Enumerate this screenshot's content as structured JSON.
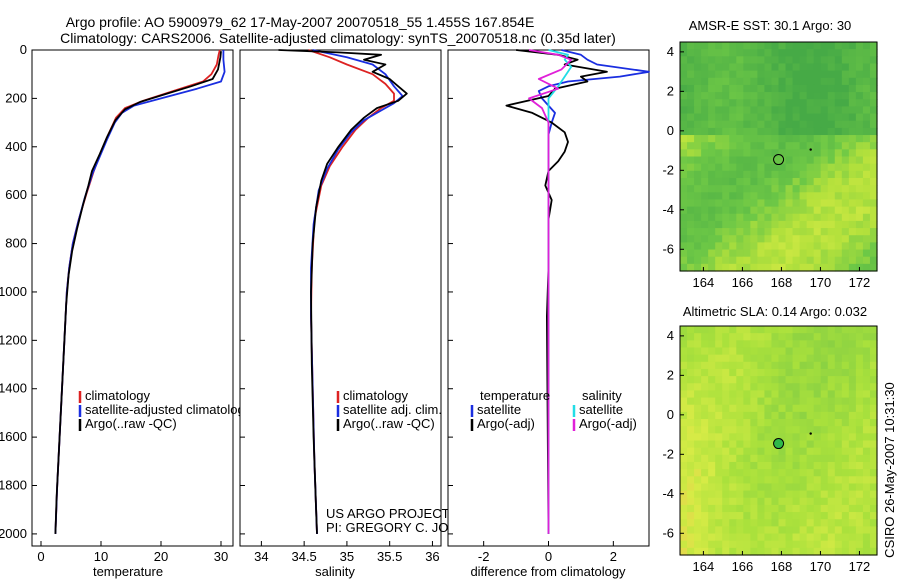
{
  "title_line1": "Argo profile: AO 5900979_62 17-May-2007 20070518_55 1.455S 167.854E",
  "title_line2": "Climatology: CARS2006. Satellite-adjusted climatology: synTS_20070518.nc (0.35d later)",
  "credit": {
    "project": "US ARGO PROJECT",
    "pi": "PI: GREGORY C. JOHNSON",
    "side_stamp": "CSIRO 26-May-2007 10:31:30"
  },
  "colors": {
    "climatology": "#dd2222",
    "satellite": "#1a2ee0",
    "argo": "#000000",
    "salinity_satellite": "#22dde6",
    "salinity_argo": "#e020d8",
    "map_marker_fill_sla": "#2fb84a"
  },
  "chart_data": [
    {
      "id": "temperature",
      "type": "line",
      "xlabel": "temperature",
      "ylabel": "",
      "xlim": [
        -1.5,
        32
      ],
      "ylim": [
        2050,
        0
      ],
      "xticks": [
        0,
        10,
        20,
        30
      ],
      "yticks": [
        0,
        200,
        400,
        600,
        800,
        1000,
        1200,
        1400,
        1600,
        1800,
        2000
      ],
      "legend": [
        "climatology",
        "satellite-adjusted climatology",
        "Argo(..raw -QC)"
      ],
      "series": [
        {
          "name": "climatology",
          "color_key": "climatology",
          "points": [
            [
              29.8,
              0
            ],
            [
              29.6,
              20
            ],
            [
              29.3,
              60
            ],
            [
              28.4,
              100
            ],
            [
              27.0,
              130
            ],
            [
              22.0,
              170
            ],
            [
              17.0,
              210
            ],
            [
              14.0,
              240
            ],
            [
              12.5,
              280
            ],
            [
              11.2,
              350
            ],
            [
              10.0,
              420
            ],
            [
              8.8,
              500
            ],
            [
              7.5,
              600
            ],
            [
              6.3,
              700
            ],
            [
              5.3,
              800
            ],
            [
              4.7,
              900
            ],
            [
              4.3,
              1000
            ],
            [
              3.9,
              1200
            ],
            [
              3.5,
              1400
            ],
            [
              3.1,
              1600
            ],
            [
              2.7,
              1800
            ],
            [
              2.4,
              2000
            ]
          ]
        },
        {
          "name": "satellite-adjusted climatology",
          "color_key": "satellite",
          "points": [
            [
              30.4,
              0
            ],
            [
              30.4,
              40
            ],
            [
              30.6,
              90
            ],
            [
              30.0,
              130
            ],
            [
              26.0,
              160
            ],
            [
              20.0,
              200
            ],
            [
              15.5,
              230
            ],
            [
              13.5,
              260
            ],
            [
              12.3,
              300
            ],
            [
              11.0,
              370
            ],
            [
              9.8,
              440
            ],
            [
              8.6,
              510
            ],
            [
              7.3,
              610
            ],
            [
              6.2,
              710
            ],
            [
              5.3,
              800
            ],
            [
              4.7,
              900
            ],
            [
              4.3,
              1000
            ],
            [
              3.9,
              1200
            ],
            [
              3.5,
              1400
            ],
            [
              3.1,
              1600
            ],
            [
              2.7,
              1800
            ],
            [
              2.4,
              2000
            ]
          ]
        },
        {
          "name": "Argo(..raw -QC)",
          "color_key": "argo",
          "points": [
            [
              30.0,
              5
            ],
            [
              29.9,
              30
            ],
            [
              29.5,
              80
            ],
            [
              28.6,
              120
            ],
            [
              25.0,
              150
            ],
            [
              21.0,
              180
            ],
            [
              16.5,
              215
            ],
            [
              14.0,
              245
            ],
            [
              12.4,
              290
            ],
            [
              11.0,
              360
            ],
            [
              9.8,
              430
            ],
            [
              8.5,
              500
            ],
            [
              7.9,
              560
            ],
            [
              7.0,
              640
            ],
            [
              6.0,
              740
            ],
            [
              5.2,
              830
            ],
            [
              4.6,
              930
            ],
            [
              4.2,
              1050
            ],
            [
              3.8,
              1250
            ],
            [
              3.4,
              1450
            ],
            [
              3.0,
              1650
            ],
            [
              2.6,
              1850
            ],
            [
              2.4,
              2000
            ]
          ]
        }
      ]
    },
    {
      "id": "salinity",
      "type": "line",
      "xlabel": "salinity",
      "ylabel": "",
      "xlim": [
        33.75,
        36.1
      ],
      "ylim": [
        2050,
        0
      ],
      "xticks": [
        34,
        34.5,
        35,
        35.5,
        36
      ],
      "yticks": [],
      "legend": [
        "climatology",
        "satellite adj. clim.",
        "Argo(..raw -QC)"
      ],
      "series": [
        {
          "name": "climatology",
          "color_key": "climatology",
          "points": [
            [
              34.55,
              0
            ],
            [
              34.8,
              30
            ],
            [
              35.0,
              60
            ],
            [
              35.3,
              100
            ],
            [
              35.45,
              140
            ],
            [
              35.55,
              180
            ],
            [
              35.55,
              210
            ],
            [
              35.4,
              240
            ],
            [
              35.25,
              280
            ],
            [
              35.1,
              330
            ],
            [
              34.95,
              400
            ],
            [
              34.8,
              480
            ],
            [
              34.7,
              560
            ],
            [
              34.62,
              700
            ],
            [
              34.59,
              900
            ],
            [
              34.58,
              1100
            ],
            [
              34.6,
              1400
            ],
            [
              34.62,
              1700
            ],
            [
              34.65,
              2000
            ]
          ]
        },
        {
          "name": "satellite adj. clim.",
          "color_key": "satellite",
          "points": [
            [
              34.6,
              0
            ],
            [
              35.0,
              30
            ],
            [
              35.3,
              60
            ],
            [
              35.45,
              100
            ],
            [
              35.55,
              150
            ],
            [
              35.65,
              190
            ],
            [
              35.55,
              220
            ],
            [
              35.4,
              250
            ],
            [
              35.2,
              290
            ],
            [
              35.05,
              340
            ],
            [
              34.9,
              410
            ],
            [
              34.77,
              490
            ],
            [
              34.67,
              580
            ],
            [
              34.61,
              720
            ],
            [
              34.58,
              900
            ],
            [
              34.58,
              1100
            ],
            [
              34.6,
              1400
            ],
            [
              34.62,
              1700
            ],
            [
              34.65,
              2000
            ]
          ]
        },
        {
          "name": "Argo(..raw -QC)",
          "color_key": "argo",
          "points": [
            [
              34.2,
              0
            ],
            [
              34.9,
              10
            ],
            [
              35.4,
              20
            ],
            [
              35.2,
              40
            ],
            [
              35.45,
              60
            ],
            [
              35.3,
              90
            ],
            [
              35.5,
              120
            ],
            [
              35.6,
              150
            ],
            [
              35.7,
              180
            ],
            [
              35.6,
              210
            ],
            [
              35.35,
              240
            ],
            [
              35.2,
              280
            ],
            [
              35.05,
              330
            ],
            [
              34.9,
              400
            ],
            [
              34.77,
              470
            ],
            [
              34.7,
              540
            ],
            [
              34.64,
              650
            ],
            [
              34.6,
              800
            ],
            [
              34.58,
              1000
            ],
            [
              34.59,
              1300
            ],
            [
              34.61,
              1600
            ],
            [
              34.64,
              1900
            ],
            [
              34.65,
              2000
            ]
          ]
        }
      ]
    },
    {
      "id": "difference",
      "type": "line",
      "xlabel": "difference from climatology",
      "ylabel": "",
      "xlim": [
        -3.1,
        3.1
      ],
      "ylim": [
        2050,
        0
      ],
      "xticks": [
        -2,
        0,
        2
      ],
      "yticks": [],
      "legend_groups": [
        {
          "header": "temperature",
          "items": [
            "satellite",
            "Argo(-adj)"
          ]
        },
        {
          "header": "salinity",
          "items": [
            "satellite",
            "Argo(-adj)"
          ]
        }
      ],
      "series": [
        {
          "name": "temperature satellite",
          "color_key": "satellite",
          "points": [
            [
              0.4,
              0
            ],
            [
              1.0,
              20
            ],
            [
              1.2,
              40
            ],
            [
              1.5,
              60
            ],
            [
              3.1,
              90
            ],
            [
              2.2,
              110
            ],
            [
              0.6,
              130
            ],
            [
              0.0,
              150
            ],
            [
              -0.3,
              170
            ],
            [
              -0.2,
              200
            ],
            [
              0.0,
              230
            ],
            [
              0.2,
              260
            ],
            [
              0.1,
              300
            ],
            [
              0.0,
              350
            ],
            [
              0.0,
              500
            ],
            [
              0.0,
              2000
            ]
          ]
        },
        {
          "name": "temperature Argo(-adj)",
          "color_key": "argo",
          "points": [
            [
              -1.0,
              0
            ],
            [
              0.3,
              20
            ],
            [
              0.9,
              40
            ],
            [
              0.5,
              60
            ],
            [
              1.8,
              90
            ],
            [
              1.0,
              110
            ],
            [
              1.2,
              130
            ],
            [
              0.2,
              160
            ],
            [
              0.0,
              190
            ],
            [
              -1.3,
              230
            ],
            [
              -0.5,
              260
            ],
            [
              0.1,
              300
            ],
            [
              0.5,
              340
            ],
            [
              0.6,
              380
            ],
            [
              0.5,
              420
            ],
            [
              0.3,
              460
            ],
            [
              0.0,
              500
            ],
            [
              -0.1,
              560
            ],
            [
              0.1,
              620
            ],
            [
              0.0,
              700
            ],
            [
              0.0,
              900
            ],
            [
              -0.05,
              1100
            ],
            [
              0.0,
              2000
            ]
          ]
        },
        {
          "name": "salinity satellite",
          "color_key": "salinity_satellite",
          "points": [
            [
              0.0,
              0
            ],
            [
              0.6,
              20
            ],
            [
              0.5,
              40
            ],
            [
              0.7,
              70
            ],
            [
              0.5,
              110
            ],
            [
              0.3,
              150
            ],
            [
              0.0,
              200
            ],
            [
              0.0,
              400
            ],
            [
              0.0,
              2000
            ]
          ]
        },
        {
          "name": "salinity Argo(-adj)",
          "color_key": "salinity_argo",
          "points": [
            [
              -0.6,
              0
            ],
            [
              0.3,
              20
            ],
            [
              0.7,
              40
            ],
            [
              0.4,
              80
            ],
            [
              -0.3,
              120
            ],
            [
              0.3,
              160
            ],
            [
              -0.6,
              200
            ],
            [
              -0.2,
              240
            ],
            [
              0.0,
              300
            ],
            [
              0.0,
              2000
            ]
          ]
        }
      ]
    },
    {
      "id": "sst_map",
      "type": "heatmap",
      "title": "AMSR-E SST: 30.1  Argo: 30",
      "xlim": [
        162.8,
        172.9
      ],
      "ylim": [
        -7.1,
        4.5
      ],
      "xticks": [
        164,
        166,
        168,
        170,
        172
      ],
      "yticks": [
        -6,
        -4,
        -2,
        0,
        2,
        4
      ],
      "marker": {
        "lon": 167.854,
        "lat": -1.455,
        "style": "open-circle"
      }
    },
    {
      "id": "sla_map",
      "type": "heatmap",
      "title": "Altimetric SLA: 0.14  Argo: 0.032",
      "xlim": [
        162.8,
        172.9
      ],
      "ylim": [
        -7.1,
        4.5
      ],
      "xticks": [
        164,
        166,
        168,
        170,
        172
      ],
      "yticks": [
        -6,
        -4,
        -2,
        0,
        2,
        4
      ],
      "marker": {
        "lon": 167.854,
        "lat": -1.455,
        "style": "filled-circle"
      }
    }
  ]
}
